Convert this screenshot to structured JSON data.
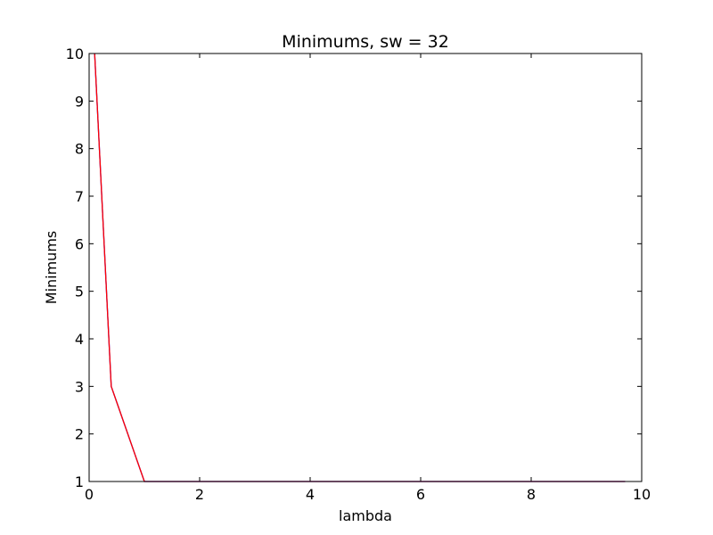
{
  "chart_data": {
    "type": "line",
    "title": "Minimums, sw = 32",
    "xlabel": "lambda",
    "ylabel": "Minimums",
    "xlim": [
      0,
      10
    ],
    "ylim": [
      1,
      10
    ],
    "xticks": [
      0,
      2,
      4,
      6,
      8,
      10
    ],
    "yticks": [
      1,
      2,
      3,
      4,
      5,
      6,
      7,
      8,
      9,
      10
    ],
    "grid": false,
    "legend": "none",
    "series": [
      {
        "color": "#0000ff",
        "x": [
          0.1,
          0.4,
          1.0,
          1.3,
          1.6,
          1.9,
          2.2,
          2.5,
          2.8,
          3.1,
          3.4,
          3.7,
          4.0,
          4.3,
          4.6,
          4.9,
          5.2,
          5.5,
          5.8,
          6.1,
          6.4,
          6.7,
          7.0,
          7.3,
          7.6,
          7.9,
          8.2,
          8.5,
          8.8,
          9.1,
          9.4,
          9.7
        ],
        "y": [
          10,
          3,
          1,
          1,
          1,
          1,
          1,
          1,
          1,
          1,
          1,
          1,
          1,
          1,
          1,
          1,
          1,
          1,
          1,
          1,
          1,
          1,
          1,
          1,
          1,
          1,
          1,
          1,
          1,
          1,
          1,
          1
        ]
      },
      {
        "color": "#ff0000",
        "x": [
          0.1,
          0.4,
          1.0,
          1.3,
          1.6,
          1.9,
          2.2,
          2.5,
          2.8,
          3.1,
          3.4,
          3.7,
          4.0,
          4.3,
          4.6,
          4.9,
          5.2,
          5.5,
          5.8,
          6.1,
          6.4,
          6.7,
          7.0,
          7.3,
          7.6,
          7.9,
          8.2,
          8.5,
          8.8,
          9.1,
          9.4,
          9.7
        ],
        "y": [
          10,
          3,
          1,
          1,
          1,
          1,
          1,
          1,
          1,
          1,
          1,
          1,
          1,
          1,
          1,
          1,
          1,
          1,
          1,
          1,
          1,
          1,
          1,
          1,
          1,
          1,
          1,
          1,
          1,
          1,
          1,
          1
        ]
      }
    ]
  }
}
